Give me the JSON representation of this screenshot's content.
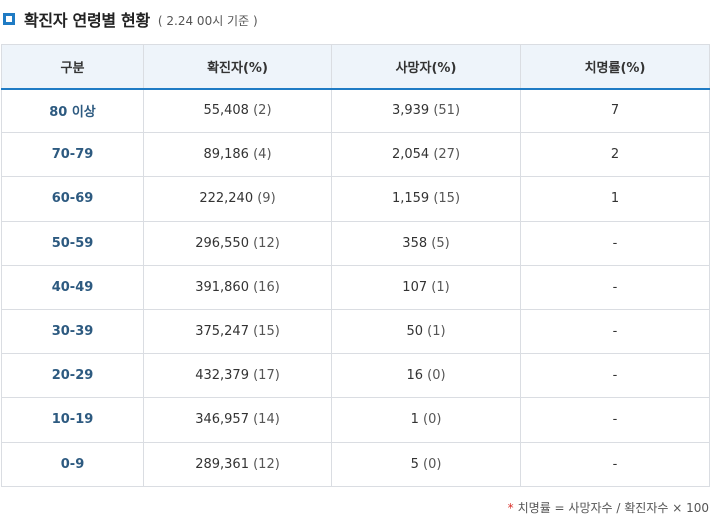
{
  "header": {
    "title": "확진자 연령별 현황",
    "subtitle": "( 2.24 00시 기준 )"
  },
  "table": {
    "columns": [
      "구분",
      "확진자(%)",
      "사망자(%)",
      "치명률(%)"
    ],
    "rows": [
      {
        "age": "80 이상",
        "confirmed": "55,408",
        "confirmed_pct": "(2)",
        "deaths": "3,939",
        "deaths_pct": "(51)",
        "cfr": "7"
      },
      {
        "age": "70-79",
        "confirmed": "89,186",
        "confirmed_pct": "(4)",
        "deaths": "2,054",
        "deaths_pct": "(27)",
        "cfr": "2"
      },
      {
        "age": "60-69",
        "confirmed": "222,240",
        "confirmed_pct": "(9)",
        "deaths": "1,159",
        "deaths_pct": "(15)",
        "cfr": "1"
      },
      {
        "age": "50-59",
        "confirmed": "296,550",
        "confirmed_pct": "(12)",
        "deaths": "358",
        "deaths_pct": "(5)",
        "cfr": "-"
      },
      {
        "age": "40-49",
        "confirmed": "391,860",
        "confirmed_pct": "(16)",
        "deaths": "107",
        "deaths_pct": "(1)",
        "cfr": "-"
      },
      {
        "age": "30-39",
        "confirmed": "375,247",
        "confirmed_pct": "(15)",
        "deaths": "50",
        "deaths_pct": "(1)",
        "cfr": "-"
      },
      {
        "age": "20-29",
        "confirmed": "432,379",
        "confirmed_pct": "(17)",
        "deaths": "16",
        "deaths_pct": "(0)",
        "cfr": "-"
      },
      {
        "age": "10-19",
        "confirmed": "346,957",
        "confirmed_pct": "(14)",
        "deaths": "1",
        "deaths_pct": "(0)",
        "cfr": "-"
      },
      {
        "age": "0-9",
        "confirmed": "289,361",
        "confirmed_pct": "(12)",
        "deaths": "5",
        "deaths_pct": "(0)",
        "cfr": "-"
      }
    ]
  },
  "footnote": {
    "marker": "*",
    "text": "치명률 = 사망자수 / 확진자수 × 100"
  },
  "colors": {
    "accent": "#1f7bc4",
    "header_bg": "#eef4fa",
    "category_text": "#2d5a80",
    "footnote_marker": "#d9302a"
  },
  "icons": {
    "title_marker": "square-bullet-icon"
  }
}
